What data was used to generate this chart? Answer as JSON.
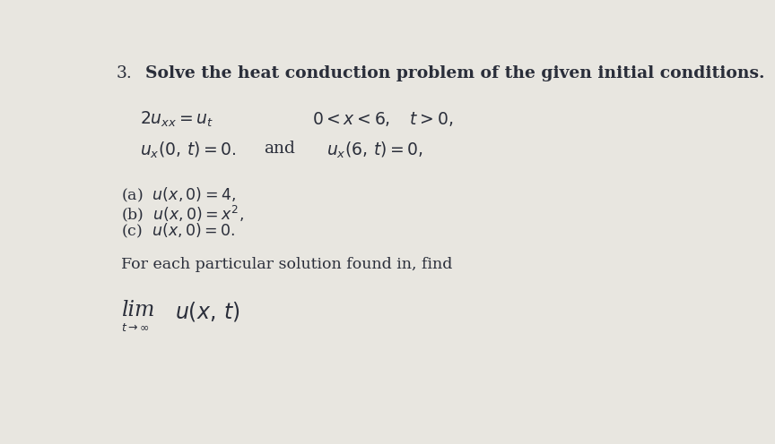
{
  "background_color": "#e8e6e0",
  "title_number": "3.",
  "title_text": "Solve the heat conduction problem of the given initial conditions.",
  "line1a": "$2u_{xx} = u_t$",
  "line1b": "$0 < x < 6, \\quad t > 0,$",
  "line2a": "$u_x(0,\\, t) = 0.$",
  "line2b": "and",
  "line2c": "$u_x(6,\\, t) = 0,$",
  "item_a": "(a)  $u(x, 0) = 4,$",
  "item_b": "(b)  $u(x, 0) = x^2,$",
  "item_c": "(c)  $u(x, 0) = 0.$",
  "footer1": "For each particular solution found in, find",
  "footer2_lim": "lim",
  "footer2_subscript": "$t \\to \\infty$",
  "footer2_func": "$u(x, t)$",
  "font_size_title": 13.5,
  "font_size_math": 13.5,
  "font_size_body": 12.5,
  "font_size_lim": 17,
  "font_size_sub": 9,
  "text_color": "#2a2e3a"
}
